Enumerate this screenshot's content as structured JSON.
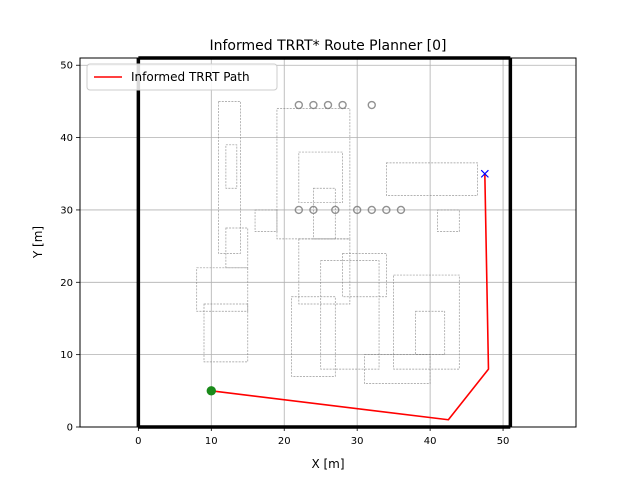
{
  "chart_data": {
    "type": "line",
    "title": "Informed TRRT* Route Planner [0]",
    "xlabel": "X [m]",
    "ylabel": "Y [m]",
    "xlim": [
      -8,
      60
    ],
    "ylim": [
      0,
      51
    ],
    "xticks": [
      0,
      10,
      20,
      30,
      40,
      50
    ],
    "yticks": [
      0,
      10,
      20,
      30,
      40,
      50
    ],
    "grid": true,
    "legend": "top-left",
    "boundary": {
      "x": [
        0,
        51
      ],
      "y": [
        0,
        51
      ],
      "color": "#000000"
    },
    "series": [
      {
        "name": "Informed TRRT Path",
        "color": "#ff0000",
        "x": [
          10,
          42.5,
          48,
          47.5
        ],
        "y": [
          5,
          1,
          8,
          35
        ]
      }
    ],
    "start": {
      "x": 10,
      "y": 5,
      "color": "#1a8a1a"
    },
    "goal": {
      "x": 47.5,
      "y": 35,
      "color": "#0000ff"
    },
    "map_color": "#777777"
  }
}
